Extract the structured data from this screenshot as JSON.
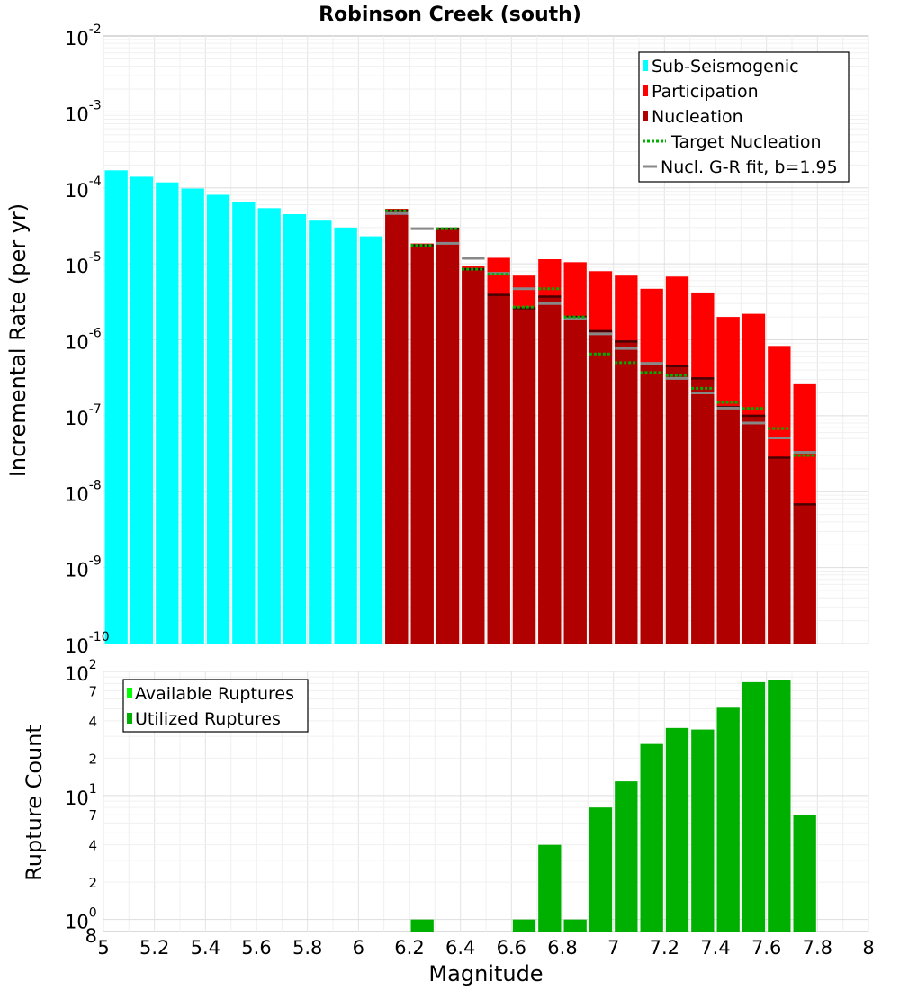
{
  "chart_data": [
    {
      "type": "bar",
      "title": "Robinson Creek (south)",
      "xlabel": "",
      "ylabel": "Incremental Rate (per yr)",
      "yscale": "log",
      "xlim": [
        5,
        8
      ],
      "ylim": [
        1e-10,
        0.01
      ],
      "ytick_exponents": [
        "-10",
        "-9",
        "-8",
        "-7",
        "-6",
        "-5",
        "-4",
        "-3",
        "-2"
      ],
      "bin_width": 0.1,
      "legend": {
        "position": "top-right",
        "entries": [
          {
            "label": "Sub-Seismogenic",
            "color": "#00ffff",
            "style": "bar"
          },
          {
            "label": "Participation",
            "color": "#ff0000",
            "style": "bar"
          },
          {
            "label": "Nucleation",
            "color": "#b00000",
            "style": "bar"
          },
          {
            "label": "Target Nucleation",
            "color": "#00b000",
            "style": "dotted-line"
          },
          {
            "label": "Nucl. G-R fit, b=1.95",
            "color": "#888888",
            "style": "line"
          }
        ]
      },
      "series": [
        {
          "name": "Sub-Seismogenic",
          "color": "#00ffff",
          "x": [
            5.05,
            5.15,
            5.25,
            5.35,
            5.45,
            5.55,
            5.65,
            5.75,
            5.85,
            5.95,
            6.05
          ],
          "values": [
            0.00017,
            0.00014,
            0.000118,
            9.8e-05,
            8.1e-05,
            6.6e-05,
            5.4e-05,
            4.5e-05,
            3.7e-05,
            3e-05,
            2.3e-05
          ]
        },
        {
          "name": "Participation",
          "color": "#ff0000",
          "x": [
            6.15,
            6.25,
            6.35,
            6.45,
            6.55,
            6.65,
            6.75,
            6.85,
            6.95,
            7.05,
            7.15,
            7.25,
            7.35,
            7.45,
            7.55,
            7.65,
            7.75
          ],
          "values": [
            5.3e-05,
            1.85e-05,
            3e-05,
            9.5e-06,
            1.2e-05,
            7e-06,
            1.15e-05,
            1.05e-05,
            8e-06,
            7e-06,
            4.7e-06,
            6.8e-06,
            4.2e-06,
            2e-06,
            2.2e-06,
            8.3e-07,
            2.6e-07
          ]
        },
        {
          "name": "Nucleation",
          "color": "#b00000",
          "x": [
            6.15,
            6.25,
            6.35,
            6.45,
            6.55,
            6.65,
            6.75,
            6.85,
            6.95,
            7.05,
            7.15,
            7.25,
            7.35,
            7.45,
            7.55,
            7.65,
            7.75
          ],
          "values": [
            5e-05,
            1.75e-05,
            2.9e-05,
            8.5e-06,
            3.9e-06,
            2.6e-06,
            3.7e-06,
            2e-06,
            1.3e-06,
            9.5e-07,
            4.8e-07,
            4.5e-07,
            3.1e-07,
            1.3e-07,
            1e-07,
            2.8e-08,
            6.8e-09
          ]
        },
        {
          "name": "Target Nucleation",
          "color": "#00b000",
          "style": "dotted",
          "x": [
            6.15,
            6.25,
            6.35,
            6.45,
            6.55,
            6.65,
            6.75,
            6.85,
            6.95,
            7.05,
            7.15,
            7.25,
            7.35,
            7.45,
            7.55,
            7.65,
            7.75
          ],
          "values": [
            5e-05,
            1.75e-05,
            2.9e-05,
            8.5e-06,
            7.3e-06,
            2.7e-06,
            4.7e-06,
            2e-06,
            6.5e-07,
            5e-07,
            3.7e-07,
            3.4e-07,
            2.3e-07,
            1.5e-07,
            1.25e-07,
            6.8e-08,
            3e-08
          ]
        },
        {
          "name": "Nucl. G-R fit, b=1.95",
          "color": "#888888",
          "x": [
            6.15,
            6.25,
            6.35,
            6.45,
            6.55,
            6.65,
            6.75,
            6.85,
            6.95,
            7.05,
            7.15,
            7.25,
            7.35,
            7.45,
            7.55,
            7.65,
            7.75
          ],
          "values": [
            4.6e-05,
            2.9e-05,
            1.86e-05,
            1.18e-05,
            7.5e-06,
            4.7e-06,
            3e-06,
            1.9e-06,
            1.2e-06,
            7.7e-07,
            4.9e-07,
            3.1e-07,
            2e-07,
            1.26e-07,
            8e-08,
            5.1e-08,
            3.3e-08
          ]
        }
      ]
    },
    {
      "type": "bar",
      "title": "",
      "xlabel": "Magnitude",
      "ylabel": "Rupture Count",
      "yscale": "log",
      "xlim": [
        5,
        8
      ],
      "ylim": [
        0.8,
        100
      ],
      "x_ticks": [
        "5",
        "5.2",
        "5.4",
        "5.6",
        "5.8",
        "6",
        "6.2",
        "6.4",
        "6.6",
        "6.8",
        "7",
        "7.2",
        "7.4",
        "7.6",
        "7.8",
        "8"
      ],
      "y_major_ticks": [
        {
          "value": 1,
          "base": "10",
          "exp": "0"
        },
        {
          "value": 10,
          "base": "10",
          "exp": "1"
        },
        {
          "value": 100,
          "base": "10",
          "exp": "2"
        }
      ],
      "y_minor_ticks": [
        {
          "value": 0.8,
          "label": "8"
        },
        {
          "value": 2,
          "label": "2"
        },
        {
          "value": 4,
          "label": "4"
        },
        {
          "value": 7,
          "label": "7"
        },
        {
          "value": 20,
          "label": "2"
        },
        {
          "value": 40,
          "label": "4"
        },
        {
          "value": 70,
          "label": "7"
        }
      ],
      "bin_width": 0.1,
      "legend": {
        "position": "top-left",
        "entries": [
          {
            "label": "Available Ruptures",
            "color": "#00ff00"
          },
          {
            "label": "Utilized Ruptures",
            "color": "#00b000"
          }
        ]
      },
      "series": [
        {
          "name": "Utilized Ruptures",
          "color": "#00b000",
          "x": [
            6.25,
            6.65,
            6.75,
            6.85,
            6.95,
            7.05,
            7.15,
            7.25,
            7.35,
            7.45,
            7.55,
            7.65,
            7.75
          ],
          "values": [
            1,
            1,
            4,
            1,
            8,
            13,
            26,
            35,
            34,
            51,
            82,
            85,
            7
          ]
        }
      ]
    }
  ]
}
